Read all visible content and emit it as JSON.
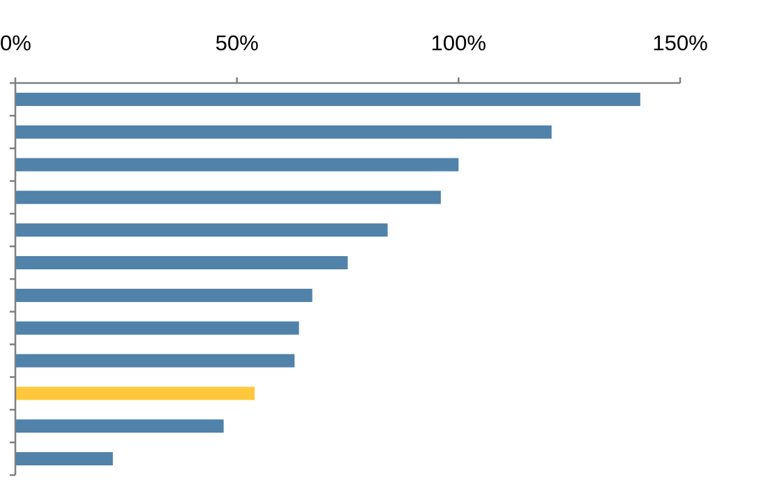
{
  "chart_data": {
    "type": "bar",
    "orientation": "horizontal",
    "axis_position": "top",
    "xlim": [
      0,
      150
    ],
    "x_ticks": [
      0,
      50,
      100,
      150
    ],
    "x_tick_labels": [
      "0%",
      "50%",
      "100%",
      "150%"
    ],
    "values": [
      141,
      121,
      100,
      96,
      84,
      75,
      67,
      64,
      63,
      54,
      47,
      22
    ],
    "highlight_index": 9,
    "colors": {
      "bar": "#5082AA",
      "highlight": "#FFC83C",
      "axis": "#7F7F7F",
      "background": "#FFFFFF"
    },
    "grid": false,
    "legend": "none",
    "title": "",
    "xlabel": "",
    "ylabel": ""
  }
}
